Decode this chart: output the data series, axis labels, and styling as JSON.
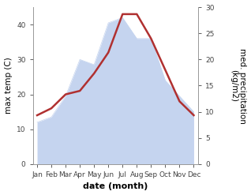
{
  "months": [
    "Jan",
    "Feb",
    "Mar",
    "Apr",
    "May",
    "Jun",
    "Jul",
    "Aug",
    "Sep",
    "Oct",
    "Nov",
    "Dec"
  ],
  "month_indices": [
    0,
    1,
    2,
    3,
    4,
    5,
    6,
    7,
    8,
    9,
    10,
    11
  ],
  "temperature": [
    14,
    16,
    20,
    21,
    26,
    32,
    43,
    43,
    36,
    27,
    18,
    14
  ],
  "precipitation": [
    8,
    9,
    13,
    20,
    19,
    27,
    28,
    24,
    24,
    16,
    13,
    10
  ],
  "temp_color": "#b03030",
  "precip_fill_color": "#c5d4ef",
  "temp_ylim": [
    0,
    45
  ],
  "precip_ylim": [
    0,
    30
  ],
  "temp_yticks": [
    0,
    10,
    20,
    30,
    40
  ],
  "precip_yticks": [
    0,
    5,
    10,
    15,
    20,
    25,
    30
  ],
  "xlabel": "date (month)",
  "ylabel_left": "max temp (C)",
  "ylabel_right": "med. precipitation\n(kg/m2)",
  "bg_color": "#ffffff",
  "label_fontsize": 7.5,
  "tick_fontsize": 6.5,
  "xlabel_fontsize": 8,
  "linewidth": 1.8
}
